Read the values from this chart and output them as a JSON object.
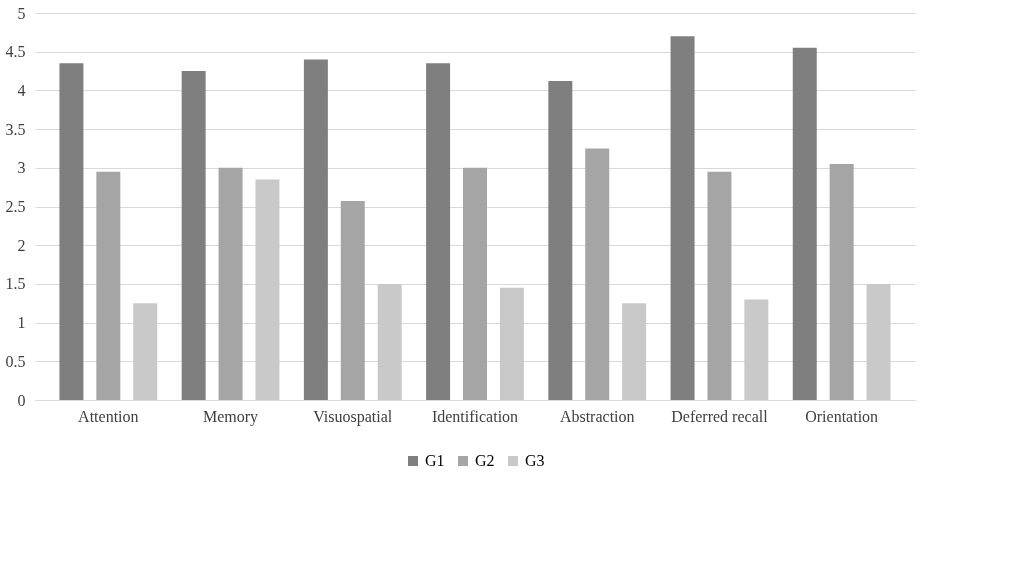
{
  "chart_data": {
    "type": "bar",
    "categories": [
      "Attention",
      "Memory",
      "Visuospatial",
      "Identification",
      "Abstraction",
      "Deferred recall",
      "Orientation"
    ],
    "series": [
      {
        "name": "G1",
        "color": "#7f7f7f",
        "values": [
          4.35,
          4.25,
          4.4,
          4.35,
          4.12,
          4.7,
          4.55
        ]
      },
      {
        "name": "G2",
        "color": "#a5a5a5",
        "values": [
          2.95,
          3.0,
          2.57,
          3.0,
          3.25,
          2.95,
          3.05
        ]
      },
      {
        "name": "G3",
        "color": "#c9c9c9",
        "values": [
          1.25,
          2.85,
          1.5,
          1.45,
          1.25,
          1.3,
          1.5
        ]
      }
    ],
    "ylim": [
      0,
      5
    ],
    "yticks": [
      0,
      0.5,
      1,
      1.5,
      2,
      2.5,
      3,
      3.5,
      4,
      4.5,
      5
    ],
    "grid": "y",
    "legend": "bottom"
  }
}
